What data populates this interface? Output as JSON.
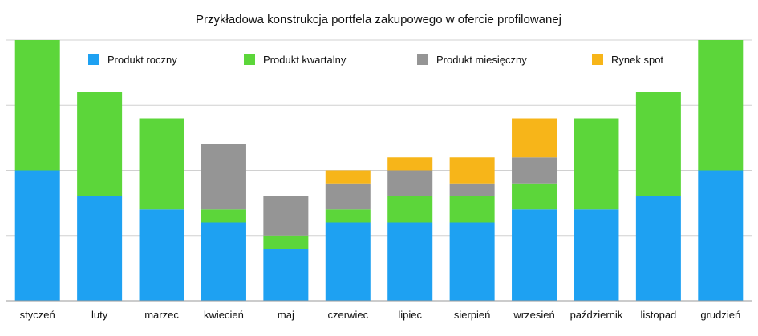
{
  "chart_data": {
    "type": "bar",
    "stacked": true,
    "title": "Przykładowa konstrukcja portfela zakupowego w ofercie profilowanej",
    "xlabel": "",
    "ylabel": "",
    "ylim": [
      0,
      20
    ],
    "grid": true,
    "legend_position": "top",
    "categories": [
      "styczeń",
      "luty",
      "marzec",
      "kwiecień",
      "maj",
      "czerwiec",
      "lipiec",
      "sierpień",
      "wrzesień",
      "październik",
      "listopad",
      "grudzień"
    ],
    "series": [
      {
        "name": "Produkt roczny",
        "color": "#1ea1f2",
        "values": [
          10,
          8,
          7,
          6,
          4,
          6,
          6,
          6,
          7,
          7,
          8,
          10
        ]
      },
      {
        "name": "Produkt kwartalny",
        "color": "#5cd63a",
        "values": [
          10,
          8,
          7,
          1,
          1,
          1,
          2,
          2,
          2,
          7,
          8,
          10
        ]
      },
      {
        "name": "Produkt miesięczny",
        "color": "#959595",
        "values": [
          0,
          0,
          0,
          5,
          3,
          2,
          2,
          1,
          2,
          0,
          0,
          0
        ]
      },
      {
        "name": "Rynek spot",
        "color": "#f7b519",
        "values": [
          0,
          0,
          0,
          0,
          0,
          1,
          1,
          2,
          3,
          0,
          0,
          0
        ]
      }
    ]
  }
}
